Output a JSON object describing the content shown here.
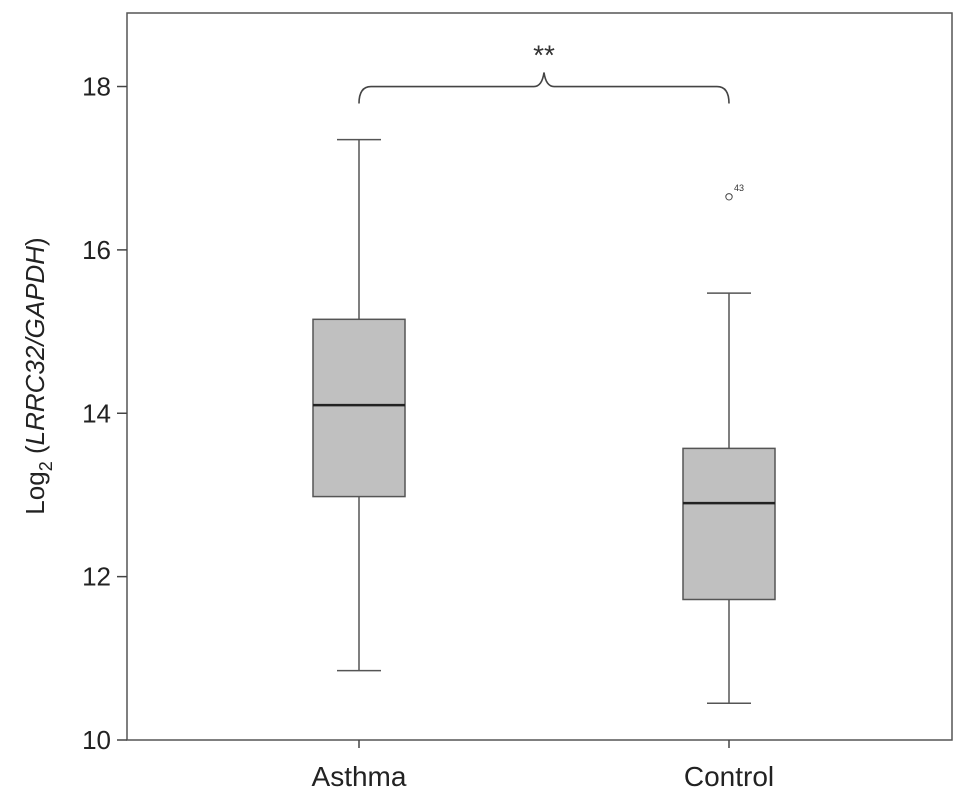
{
  "chart_data": {
    "type": "box",
    "title": "",
    "xlabel": "",
    "ylabel": {
      "prefix": "Log",
      "subscript": "2",
      "gene": "LRRC32/GAPDH"
    },
    "ylim": [
      10,
      18.9
    ],
    "yticks": [
      10,
      12,
      14,
      16,
      18
    ],
    "grid": false,
    "categories": [
      "Asthma",
      "Control"
    ],
    "boxes": [
      {
        "category": "Asthma",
        "whisker_low": 10.85,
        "q1": 12.98,
        "median": 14.1,
        "q3": 15.15,
        "whisker_high": 17.35,
        "outliers": []
      },
      {
        "category": "Control",
        "whisker_low": 10.45,
        "q1": 11.72,
        "median": 12.9,
        "q3": 13.57,
        "whisker_high": 15.47,
        "outliers": [
          {
            "value": 16.65,
            "label": "43"
          }
        ]
      }
    ],
    "significance": {
      "label": "**",
      "between": [
        "Asthma",
        "Control"
      ],
      "y": 18.0
    },
    "colors": {
      "box_fill": "#c0c0c0",
      "line": "#555555",
      "axis": "#444444"
    }
  }
}
